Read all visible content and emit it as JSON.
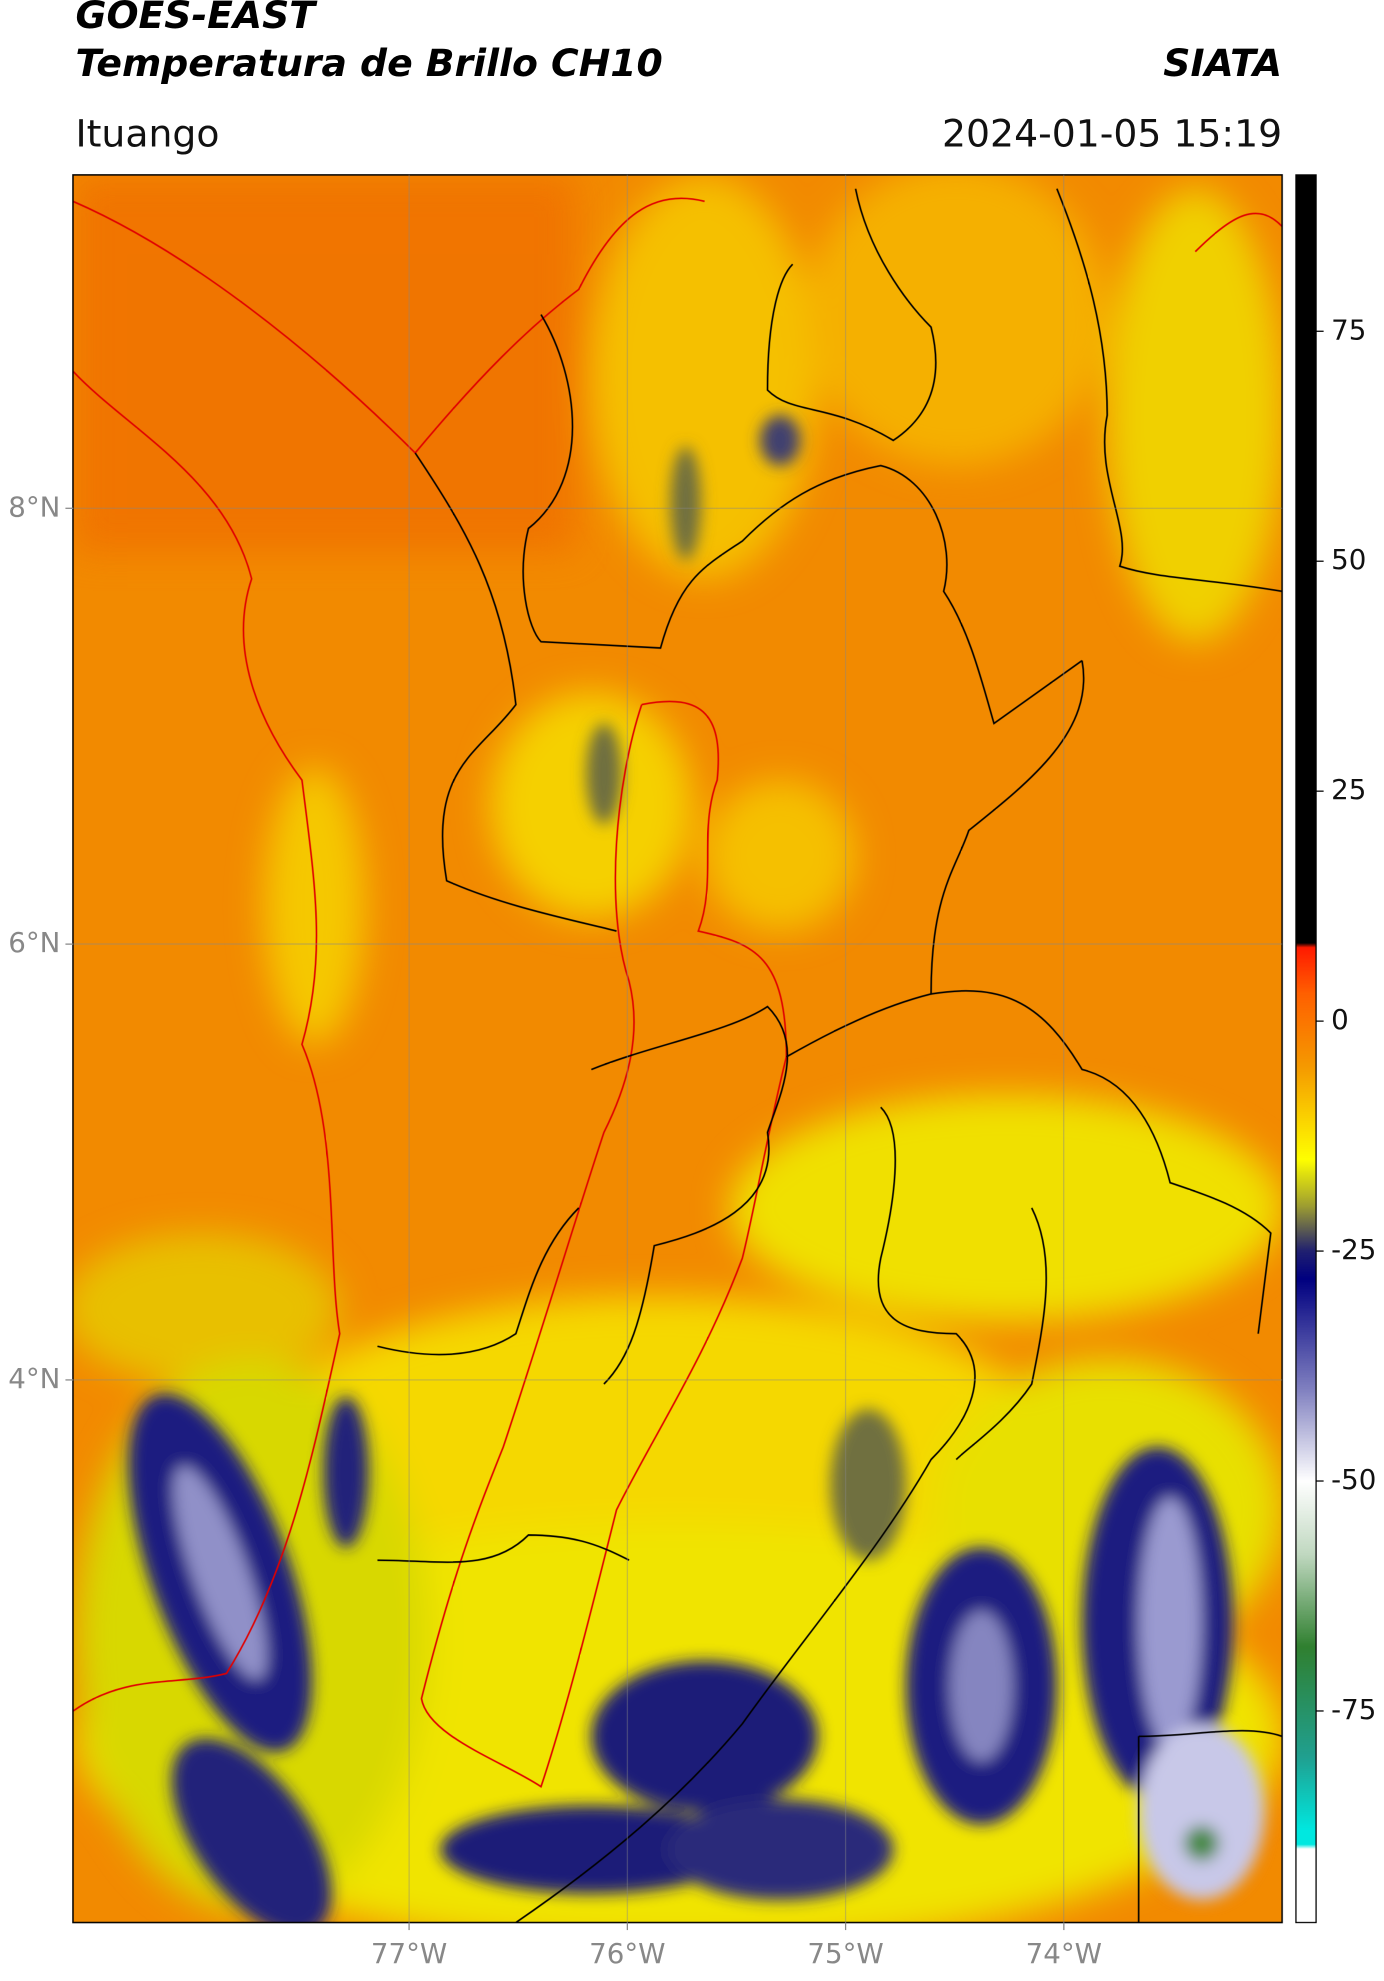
{
  "chart_data": {
    "type": "map",
    "title": "GOES-EAST",
    "subtitle": "Temperatura de Brillo CH10",
    "source": "SIATA",
    "location": "Ituango",
    "datetime": "2024-01-05 15:19",
    "xlim": [
      -78.54,
      -73.0
    ],
    "ylim": [
      1.51,
      9.53
    ],
    "xticks": [
      {
        "value": -77,
        "label": "77°W"
      },
      {
        "value": -76,
        "label": "76°W"
      },
      {
        "value": -75,
        "label": "75°W"
      },
      {
        "value": -74,
        "label": "74°W"
      }
    ],
    "yticks": [
      {
        "value": 8,
        "label": "8°N"
      },
      {
        "value": 6,
        "label": "6°N"
      },
      {
        "value": 4,
        "label": "4°N"
      }
    ],
    "grid": true,
    "colorbar": {
      "lim": [
        -98,
        92
      ],
      "ticks": [
        75,
        50,
        25,
        0,
        -25,
        -50,
        -75
      ],
      "stops": [
        [
          92,
          "#000000"
        ],
        [
          8.5,
          "#000000"
        ],
        [
          8,
          "#ff1a00"
        ],
        [
          3,
          "#ff6000"
        ],
        [
          -5,
          "#f59a00"
        ],
        [
          -15,
          "#ffff00"
        ],
        [
          -20,
          "#a0a030"
        ],
        [
          -25,
          "#202070"
        ],
        [
          -28,
          "#000080"
        ],
        [
          -40,
          "#8080c0"
        ],
        [
          -50,
          "#ffffff"
        ],
        [
          -58,
          "#c0d8c0"
        ],
        [
          -68,
          "#308030"
        ],
        [
          -80,
          "#20a090"
        ],
        [
          -88,
          "#00e8e0"
        ],
        [
          -89.5,
          "#00e8e0"
        ],
        [
          -90,
          "#ffffff"
        ],
        [
          -98,
          "#ffffff"
        ]
      ]
    }
  }
}
